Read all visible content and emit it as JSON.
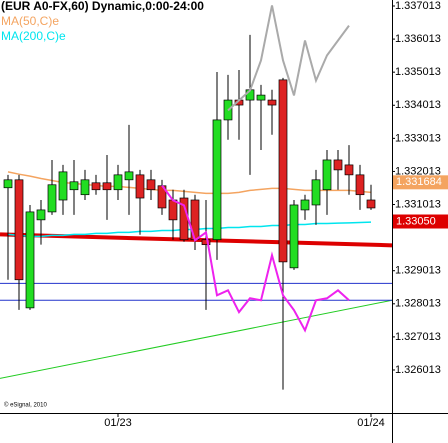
{
  "chart_data": {
    "type": "candlestick",
    "title": "(EUR A0-FX,60) Dynamic,0:00-24:00",
    "copyright": "© eSignal, 2010",
    "categories": [
      null,
      null,
      null,
      null,
      null,
      null,
      null,
      null,
      null,
      null,
      "01/23",
      null,
      null,
      null,
      null,
      null,
      null,
      null,
      null,
      null,
      null,
      null,
      null,
      null,
      null,
      null,
      null,
      null,
      null,
      null,
      null,
      null,
      null,
      "01/24"
    ],
    "up_color": "#22dd22",
    "down_color": "#dd2222",
    "open": [
      1.33152,
      1.33176,
      1.32789,
      1.33055,
      1.33079,
      1.33115,
      1.33146,
      1.33131,
      1.33167,
      1.33167,
      1.33146,
      1.33176,
      1.33191,
      1.33176,
      1.33158,
      1.33115,
      1.33121,
      1.33115,
      1.32995,
      1.32995,
      1.33357,
      1.33417,
      1.33417,
      1.33417,
      1.33417,
      1.33478,
      1.3291,
      1.33085,
      1.331,
      1.33146,
      1.33236,
      1.33221,
      1.33191,
      1.33115
    ],
    "high": [
      1.33191,
      1.33191,
      1.331,
      1.33115,
      1.33236,
      1.33221,
      1.33236,
      1.33206,
      1.33191,
      1.33251,
      1.33221,
      1.33342,
      1.33206,
      1.33206,
      1.33176,
      1.33146,
      1.33146,
      1.33131,
      1.33115,
      1.33502,
      1.33493,
      1.33508,
      1.33614,
      1.33463,
      1.33448,
      1.33484,
      1.33115,
      1.33131,
      1.33206,
      1.33266,
      1.33266,
      1.33281,
      1.33221,
      1.33161
    ],
    "low": [
      1.32874,
      1.32783,
      1.32783,
      1.3298,
      1.3307,
      1.3307,
      1.3307,
      1.33115,
      1.33131,
      1.33055,
      1.33115,
      1.3307,
      1.3301,
      1.33115,
      1.3307,
      1.32995,
      1.32989,
      1.32964,
      1.32783,
      1.32934,
      1.33297,
      1.33297,
      1.33191,
      1.33266,
      1.33312,
      1.32542,
      1.32904,
      1.33055,
      1.3304,
      1.3307,
      1.33146,
      1.33131,
      1.33085,
      1.33085
    ],
    "close": [
      1.33176,
      1.32874,
      1.33079,
      1.33085,
      1.33161,
      1.332,
      1.3317,
      1.33176,
      1.33146,
      1.33146,
      1.33191,
      1.332,
      1.33121,
      1.33146,
      1.33091,
      1.33055,
      1.32995,
      1.32995,
      1.3298,
      1.33357,
      1.33417,
      1.33402,
      1.33448,
      1.33432,
      1.33402,
      1.32928,
      1.331,
      1.33115,
      1.33176,
      1.33236,
      1.33206,
      1.33191,
      1.33131,
      1.33091
    ],
    "series": [
      {
        "name": "MA(50,C)e",
        "color": "#f4a460",
        "values": [
          1.332,
          1.33193,
          1.33187,
          1.3318,
          1.33174,
          1.33168,
          1.33165,
          1.33162,
          1.33159,
          1.33156,
          1.33156,
          1.33153,
          1.3315,
          1.33147,
          1.33144,
          1.33144,
          1.33141,
          1.33138,
          1.33135,
          1.33135,
          1.33135,
          1.33138,
          1.33144,
          1.33147,
          1.3315,
          1.3315,
          1.33147,
          1.33144,
          1.33144,
          1.33144,
          1.33144,
          1.33144,
          1.33141,
          1.33138
        ]
      },
      {
        "name": "MA(200,C)e",
        "color": "#00e5ee",
        "values": [
          1.33011,
          1.33008,
          1.33005,
          1.33005,
          1.33008,
          1.33008,
          1.33011,
          1.33011,
          1.33014,
          1.33014,
          1.33017,
          1.33017,
          1.3302,
          1.3302,
          1.33023,
          1.33023,
          1.33026,
          1.33026,
          1.33029,
          1.33029,
          1.33032,
          1.33032,
          1.33035,
          1.33035,
          1.33038,
          1.33038,
          1.33041,
          1.33041,
          1.33044,
          1.33044,
          1.33045,
          1.33046,
          1.33047,
          1.33048
        ]
      }
    ],
    "overlays": [
      {
        "color": "#ee22ee",
        "values": [
          null,
          null,
          null,
          null,
          null,
          null,
          null,
          null,
          null,
          null,
          null,
          null,
          null,
          null,
          1.33159,
          1.33114,
          1.33099,
          1.32993,
          1.33017,
          1.32827,
          1.32842,
          1.32776,
          1.32818,
          1.32812,
          1.32948,
          1.32827,
          1.32782,
          1.32721,
          1.32812,
          1.32818,
          1.32842,
          1.32812,
          null,
          null
        ]
      },
      {
        "color": "#aaaaaa",
        "values": [
          null,
          null,
          null,
          null,
          null,
          null,
          null,
          null,
          null,
          null,
          null,
          null,
          null,
          null,
          null,
          null,
          null,
          null,
          null,
          null,
          1.33386,
          1.33416,
          1.33446,
          1.33537,
          1.33703,
          1.33537,
          1.33431,
          1.33597,
          1.33476,
          1.33552,
          1.33597,
          1.33642,
          null,
          null
        ]
      }
    ],
    "levels": [
      {
        "value": 1.32863,
        "color": "#2233cc"
      },
      {
        "value": 1.32812,
        "color": "#2233cc"
      }
    ],
    "trendlines": [
      {
        "from": 1.33011,
        "to": 1.32978,
        "color": "#dd0000",
        "width": 4
      },
      {
        "from": 1.32576,
        "to": 1.32812,
        "color": "#22cc22",
        "width": 1
      }
    ],
    "price_labels": [
      {
        "value": 1.331684,
        "label": "1.331684",
        "color": "#f4a460"
      },
      {
        "value": 1.3305,
        "label": "1.33050",
        "color": "#dd0000"
      }
    ],
    "ylim": [
      1.324713,
      1.337194
    ],
    "yticks": [
      1.337013,
      1.336013,
      1.335013,
      1.334013,
      1.333013,
      1.332013,
      1.331013,
      1.329013,
      1.328013,
      1.327013,
      1.326013
    ]
  }
}
